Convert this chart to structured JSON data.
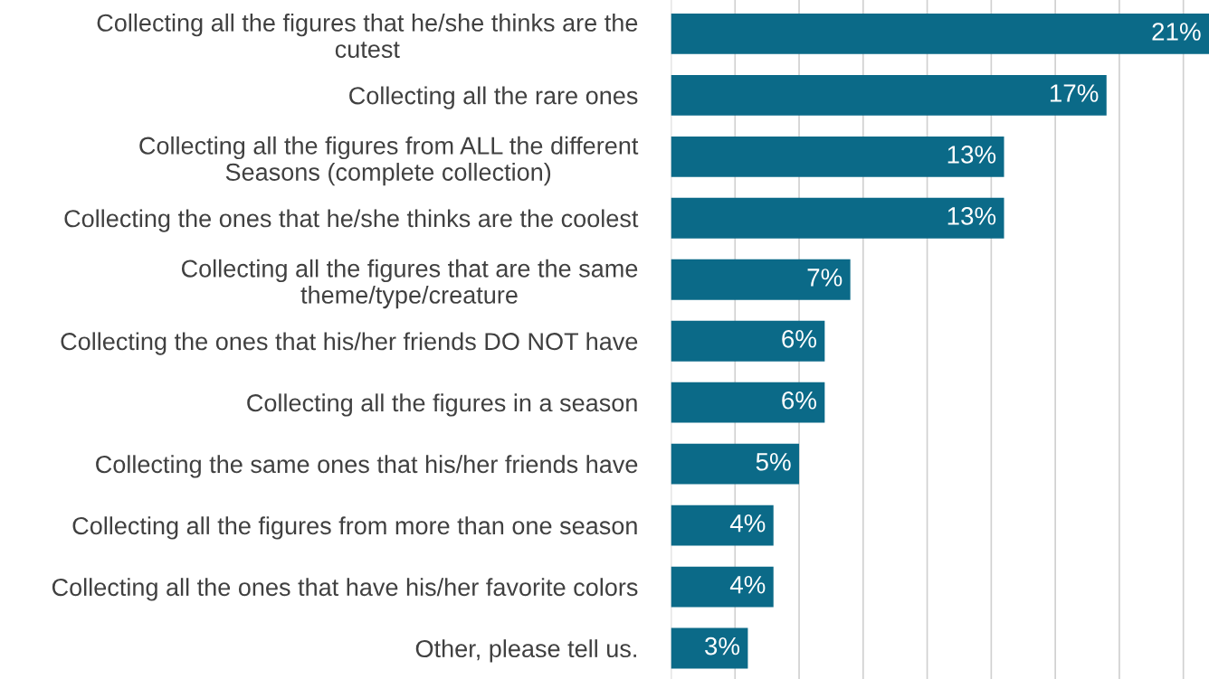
{
  "chart_data": {
    "type": "bar",
    "orientation": "horizontal",
    "categories": [
      "Collecting all the figures that he/she thinks are the\ncutest",
      "Collecting all the rare ones",
      "Collecting all the figures from ALL the different\nSeasons (complete collection)",
      "Collecting the ones that he/she thinks are the coolest",
      "Collecting all the figures that are the same\ntheme/type/creature",
      "Collecting the ones that his/her friends DO NOT have",
      "Collecting all the figures in a season",
      "Collecting the same ones that his/her friends have",
      "Collecting all the figures from more than one season",
      "Collecting all the ones that have his/her favorite colors",
      "Other, please tell us."
    ],
    "values": [
      21,
      17,
      13,
      13,
      7,
      6,
      6,
      5,
      4,
      4,
      3
    ],
    "value_labels": [
      "21%",
      "17%",
      "13%",
      "13%",
      "7%",
      "6%",
      "6%",
      "5%",
      "4%",
      "4%",
      "3%"
    ],
    "color": "#0b6a88",
    "grid": "x"
  }
}
